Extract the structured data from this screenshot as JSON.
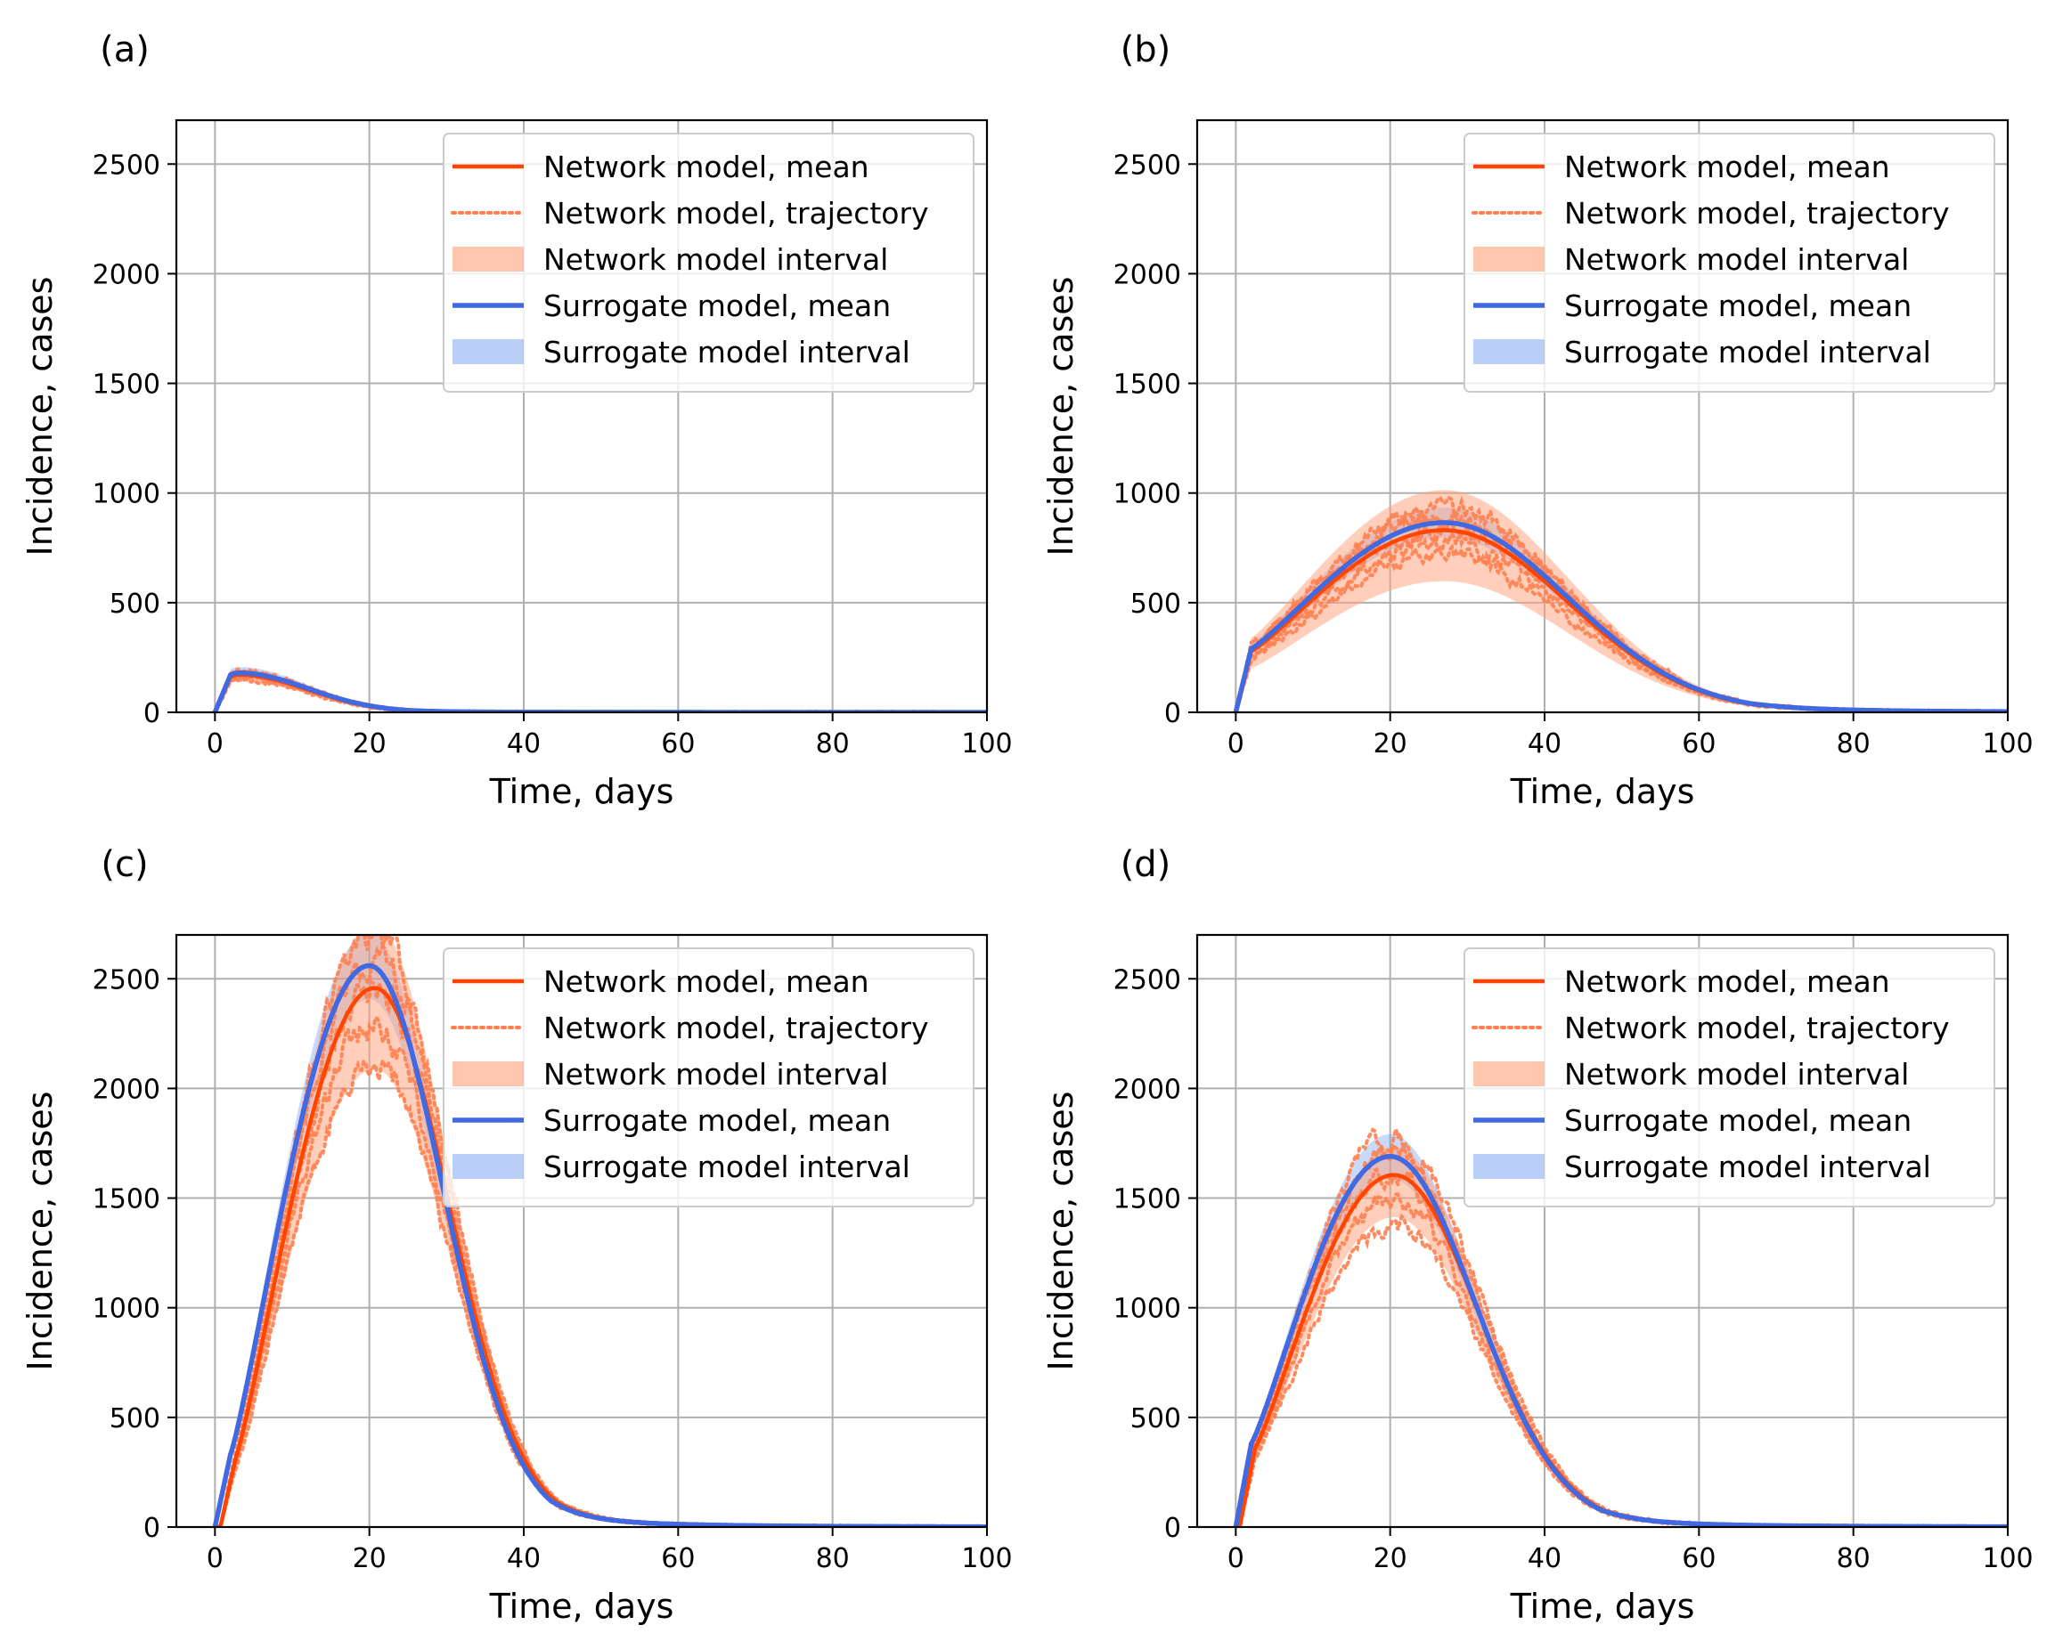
{
  "figure": {
    "background": "#ffffff"
  },
  "colors": {
    "network_mean": "#ff4500",
    "network_traj": "#ff7f50",
    "network_band": "#ffa07a",
    "surrogate_mean": "#4169e1",
    "surrogate_band": "#6495ed",
    "grid": "#b0b0b0"
  },
  "chart_data": [
    {
      "panel": "(a)",
      "type": "line",
      "xlabel": "Time, days",
      "ylabel": "Incidence, cases",
      "xlim": [
        -5,
        100
      ],
      "ylim": [
        0,
        2700
      ],
      "xticks": [
        0,
        20,
        40,
        60,
        80,
        100
      ],
      "yticks": [
        0,
        500,
        1000,
        1500,
        2000,
        2500
      ],
      "grid": true,
      "legend_position": "upper right",
      "legend": [
        "Network model, mean",
        "Network model, trajectory",
        "Network model interval",
        "Surrogate model, mean",
        "Surrogate model interval"
      ],
      "epidemic": {
        "onset_day": 2,
        "onset_value": 170,
        "peak_day": 3,
        "peak_value": 180,
        "rise": 1.2,
        "decay": 9.0
      },
      "network": {
        "ratio": 0.95,
        "shift": 0
      },
      "interval": {
        "network_lo": 0.82,
        "network_hi": 1.12,
        "surrogate_lo": 0.85,
        "surrogate_hi": 1.15
      },
      "noise": 0.08
    },
    {
      "panel": "(b)",
      "type": "line",
      "xlabel": "Time, days",
      "ylabel": "Incidence, cases",
      "xlim": [
        -5,
        100
      ],
      "ylim": [
        0,
        2700
      ],
      "xticks": [
        0,
        20,
        40,
        60,
        80,
        100
      ],
      "yticks": [
        0,
        500,
        1000,
        1500,
        2000,
        2500
      ],
      "grid": true,
      "legend_position": "upper right",
      "legend": [
        "Network model, mean",
        "Network model, trajectory",
        "Network model interval",
        "Surrogate model, mean",
        "Surrogate model interval"
      ],
      "epidemic": {
        "onset_day": 2,
        "onset_value": 290,
        "peak_day": 27,
        "peak_value": 865,
        "rise": 14.0,
        "decay": 16.0
      },
      "network": {
        "ratio": 0.96,
        "shift": 0
      },
      "interval": {
        "network_lo": 0.72,
        "network_hi": 1.22,
        "surrogate_lo": 0.92,
        "surrogate_hi": 1.08
      },
      "noise": 0.1
    },
    {
      "panel": "(c)",
      "type": "line",
      "xlabel": "Time, days",
      "ylabel": "Incidence, cases",
      "xlim": [
        -5,
        100
      ],
      "ylim": [
        0,
        2700
      ],
      "xticks": [
        0,
        20,
        40,
        60,
        80,
        100
      ],
      "yticks": [
        0,
        500,
        1000,
        1500,
        2000,
        2500
      ],
      "grid": true,
      "legend_position": "upper right",
      "legend": [
        "Network model, mean",
        "Network model, trajectory",
        "Network model interval",
        "Surrogate model, mean",
        "Surrogate model interval"
      ],
      "epidemic": {
        "onset_day": 2,
        "onset_value": 330,
        "peak_day": 20,
        "peak_value": 2560,
        "rise": 7.5,
        "decay": 9.5
      },
      "network": {
        "ratio": 0.96,
        "shift": 0.7
      },
      "interval": {
        "network_lo": 0.85,
        "network_hi": 1.12,
        "surrogate_lo": 0.94,
        "surrogate_hi": 1.06
      },
      "noise": 0.06
    },
    {
      "panel": "(d)",
      "type": "line",
      "xlabel": "Time, days",
      "ylabel": "Incidence, cases",
      "xlim": [
        -5,
        100
      ],
      "ylim": [
        0,
        2700
      ],
      "xticks": [
        0,
        20,
        40,
        60,
        80,
        100
      ],
      "yticks": [
        0,
        500,
        1000,
        1500,
        2000,
        2500
      ],
      "grid": true,
      "legend_position": "upper right",
      "legend": [
        "Network model, mean",
        "Network model, trajectory",
        "Network model interval",
        "Surrogate model, mean",
        "Surrogate model interval"
      ],
      "epidemic": {
        "onset_day": 2,
        "onset_value": 380,
        "peak_day": 20,
        "peak_value": 1690,
        "rise": 8.5,
        "decay": 11.0
      },
      "network": {
        "ratio": 0.95,
        "shift": 0.5
      },
      "interval": {
        "network_lo": 0.88,
        "network_hi": 1.08,
        "surrogate_lo": 0.94,
        "surrogate_hi": 1.06
      },
      "noise": 0.06
    }
  ]
}
